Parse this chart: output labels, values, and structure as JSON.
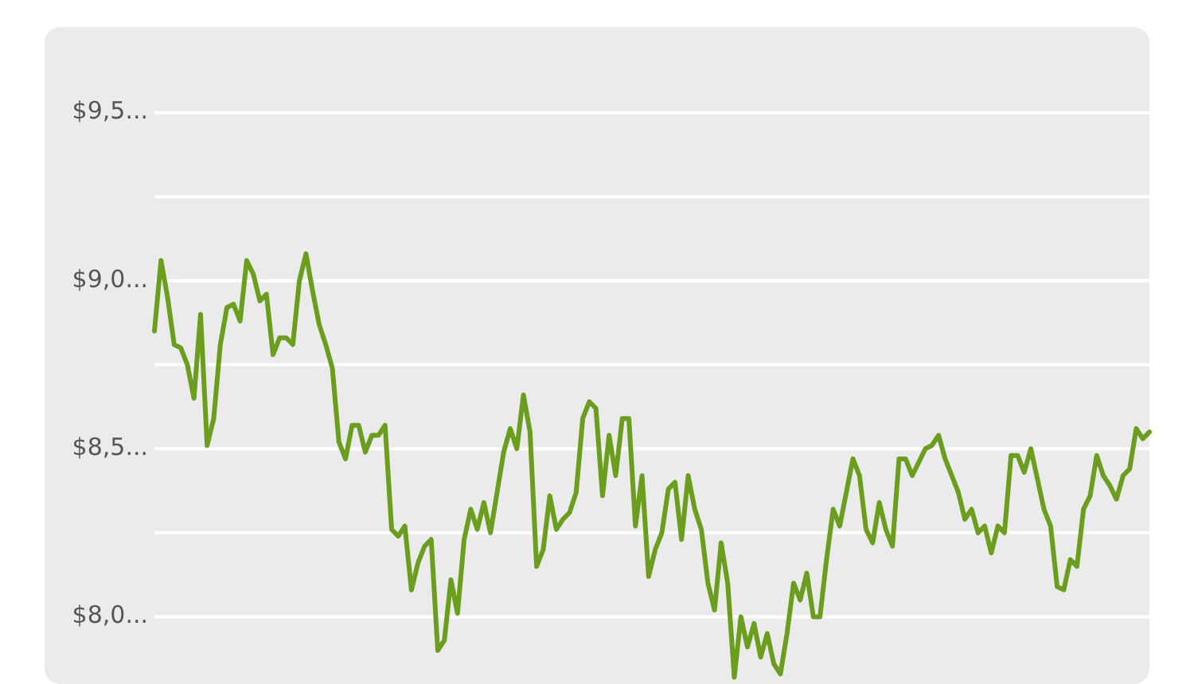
{
  "chart_data": {
    "type": "line",
    "categories": [
      null,
      null,
      null,
      null,
      null,
      null,
      null,
      null,
      null,
      null,
      null,
      null,
      null,
      null,
      null,
      null,
      null,
      null,
      null,
      null,
      null,
      null,
      null,
      null,
      null,
      null,
      null,
      null,
      null,
      null,
      null,
      null,
      null,
      null,
      null,
      null,
      null,
      null,
      null,
      null,
      null,
      null,
      null,
      null,
      null,
      null,
      null,
      null,
      null,
      null,
      null,
      null,
      null,
      null,
      null,
      null,
      null,
      null,
      null,
      null,
      null,
      null,
      null,
      null,
      null,
      null,
      null,
      null,
      null,
      null,
      null,
      null,
      null,
      null,
      null,
      null,
      null,
      null,
      null,
      null,
      null,
      null,
      null,
      null,
      null,
      null,
      null,
      null,
      null,
      null,
      null,
      null,
      null,
      null,
      null,
      null,
      null,
      null,
      null,
      null,
      null,
      null,
      null,
      null,
      null,
      null,
      null,
      null,
      null,
      null,
      null,
      null,
      null,
      null,
      null,
      null,
      null,
      null,
      null,
      null,
      null,
      null,
      null,
      null,
      null,
      null,
      null,
      null,
      null,
      null,
      null,
      null,
      null,
      null,
      null,
      null,
      null,
      null,
      null,
      null,
      null,
      null,
      null,
      null,
      null,
      null,
      null,
      null,
      null,
      null,
      null,
      null
    ],
    "values": [
      8.85,
      9.06,
      8.95,
      8.81,
      8.8,
      8.75,
      8.65,
      8.9,
      8.51,
      8.59,
      8.81,
      8.92,
      8.93,
      8.88,
      9.06,
      9.02,
      8.94,
      8.96,
      8.78,
      8.83,
      8.83,
      8.81,
      9.0,
      9.08,
      8.97,
      8.87,
      8.81,
      8.74,
      8.52,
      8.47,
      8.57,
      8.57,
      8.49,
      8.54,
      8.54,
      8.57,
      8.26,
      8.24,
      8.27,
      8.08,
      8.16,
      8.21,
      8.23,
      7.9,
      7.93,
      8.11,
      8.01,
      8.23,
      8.32,
      8.26,
      8.34,
      8.25,
      8.37,
      8.49,
      8.56,
      8.5,
      8.66,
      8.55,
      8.15,
      8.2,
      8.36,
      8.26,
      8.29,
      8.31,
      8.37,
      8.59,
      8.64,
      8.62,
      8.36,
      8.54,
      8.42,
      8.59,
      8.59,
      8.27,
      8.42,
      8.12,
      8.2,
      8.25,
      8.38,
      8.4,
      8.23,
      8.42,
      8.32,
      8.26,
      8.1,
      8.02,
      8.22,
      8.1,
      7.82,
      8.0,
      7.91,
      7.98,
      7.88,
      7.95,
      7.86,
      7.83,
      7.95,
      8.1,
      8.05,
      8.13,
      8.0,
      8.0,
      8.17,
      8.32,
      8.27,
      8.37,
      8.47,
      8.42,
      8.26,
      8.22,
      8.34,
      8.26,
      8.21,
      8.47,
      8.47,
      8.42,
      8.46,
      8.5,
      8.51,
      8.54,
      8.47,
      8.42,
      8.37,
      8.29,
      8.32,
      8.25,
      8.27,
      8.19,
      8.27,
      8.25,
      8.48,
      8.48,
      8.43,
      8.5,
      8.41,
      8.32,
      8.27,
      8.09,
      8.08,
      8.17,
      8.15,
      8.32,
      8.36,
      8.48,
      8.42,
      8.39,
      8.35,
      8.42,
      8.44,
      8.56,
      8.53,
      8.55
    ],
    "color": "#6b9e1f",
    "ylim": [
      7.8,
      9.75
    ],
    "tick_labels": false,
    "ref_lines": [
      {
        "axis": "y",
        "value": 8.0,
        "label": "$8,0...",
        "color": "#ffffff"
      },
      {
        "axis": "y",
        "value": 8.25,
        "color": "#ffffff"
      },
      {
        "axis": "y",
        "value": 8.5,
        "label": "$8,5...",
        "color": "#ffffff"
      },
      {
        "axis": "y",
        "value": 8.75,
        "color": "#ffffff"
      },
      {
        "axis": "y",
        "value": 9.0,
        "label": "$9,0...",
        "color": "#ffffff"
      },
      {
        "axis": "y",
        "value": 9.25,
        "color": "#ffffff"
      },
      {
        "axis": "y",
        "value": 9.5,
        "label": "$9,5...",
        "color": "#ffffff"
      }
    ]
  }
}
